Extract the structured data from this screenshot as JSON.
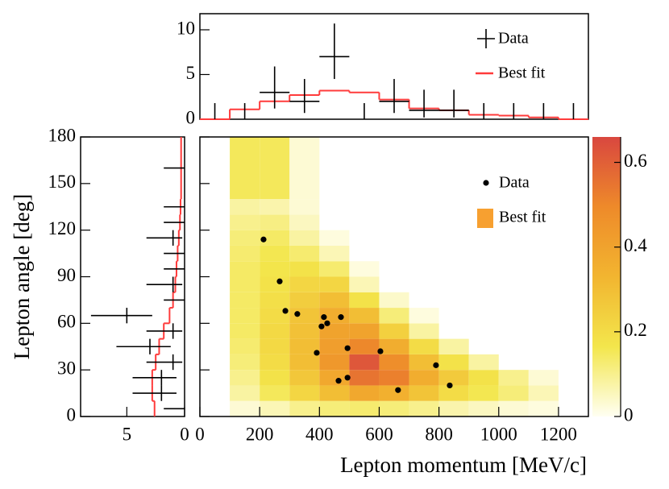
{
  "chart_data": [
    {
      "type": "histogram",
      "orientation": "vertical",
      "bins": [
        0,
        100,
        200,
        300,
        400,
        500,
        600,
        700,
        800,
        900,
        1000,
        1100,
        1200,
        1300
      ],
      "xlim": [
        0,
        1300
      ],
      "ylim": [
        0,
        11.8
      ],
      "yticks": [
        0,
        5,
        10
      ],
      "series": [
        {
          "name": "Data",
          "color": "#000000",
          "values": [
            0,
            0,
            3,
            2,
            7,
            0,
            2,
            1,
            1,
            0,
            0,
            0,
            0
          ],
          "lower": [
            0,
            0,
            1.2,
            0.7,
            4.5,
            0,
            0.7,
            0.2,
            0.2,
            0,
            0,
            0,
            0
          ],
          "upper": [
            1.8,
            1.8,
            5.9,
            4.5,
            10.7,
            1.8,
            4.5,
            3.3,
            3.3,
            1.8,
            1.8,
            1.8,
            1.8
          ]
        },
        {
          "name": "Best fit",
          "color": "#ff3b3b",
          "values": [
            0,
            1.1,
            2.0,
            2.7,
            3.2,
            3.0,
            2.2,
            1.2,
            1.0,
            0.5,
            0.4,
            0.2,
            0
          ]
        }
      ]
    },
    {
      "type": "histogram",
      "orientation": "horizontal",
      "bins": [
        0,
        10,
        20,
        30,
        40,
        50,
        60,
        70,
        80,
        90,
        100,
        110,
        120,
        130,
        140,
        180
      ],
      "xlim": [
        9,
        0
      ],
      "xticks": [
        5,
        0
      ],
      "ylim": [
        0,
        180
      ],
      "yticks": [
        0,
        30,
        60,
        90,
        120,
        150,
        180
      ],
      "y_label": "Lepton angle [deg]",
      "series": [
        {
          "name": "Data",
          "color": "#000000",
          "values": [
            0,
            2,
            2,
            1,
            3,
            1,
            5,
            0,
            1,
            0,
            0,
            1,
            0,
            0,
            0
          ],
          "lower": [
            0,
            0.7,
            0.7,
            0.2,
            1.2,
            0.2,
            2.8,
            0,
            0.2,
            0,
            0,
            0.2,
            0,
            0,
            0
          ],
          "upper": [
            1.8,
            4.5,
            4.5,
            3.3,
            5.9,
            3.3,
            8.1,
            1.8,
            3.3,
            1.8,
            1.8,
            3.3,
            1.8,
            1.8,
            1.8
          ]
        },
        {
          "name": "Best fit",
          "color": "#ff3b3b",
          "values": [
            2.6,
            2.8,
            2.8,
            2.5,
            2.2,
            1.8,
            1.3,
            1.0,
            0.8,
            0.7,
            0.6,
            0.5,
            0.4,
            0.35,
            0.3
          ]
        }
      ]
    },
    {
      "type": "heatmap",
      "xbins": [
        100,
        200,
        300,
        400,
        500,
        600,
        700,
        800,
        900,
        1000,
        1100,
        1200
      ],
      "ybins": [
        0,
        10,
        20,
        30,
        40,
        50,
        60,
        70,
        80,
        90,
        100,
        110,
        120,
        130,
        140,
        180
      ],
      "z": [
        [
          0.03,
          0.06,
          0.1,
          0.12,
          0.13,
          0.12,
          0.1,
          0.07,
          0.05,
          0.03,
          0.02
        ],
        [
          0.08,
          0.15,
          0.22,
          0.3,
          0.38,
          0.35,
          0.28,
          0.2,
          0.16,
          0.12,
          0.06
        ],
        [
          0.1,
          0.18,
          0.27,
          0.38,
          0.55,
          0.52,
          0.36,
          0.26,
          0.18,
          0.1,
          0.03
        ],
        [
          0.12,
          0.2,
          0.3,
          0.44,
          0.62,
          0.48,
          0.3,
          0.18,
          0.08,
          null,
          null
        ],
        [
          0.13,
          0.21,
          0.3,
          0.42,
          0.5,
          0.36,
          0.2,
          0.08,
          null,
          null,
          null
        ],
        [
          0.14,
          0.21,
          0.29,
          0.4,
          0.4,
          0.24,
          0.08,
          null,
          null,
          null,
          null
        ],
        [
          0.14,
          0.2,
          0.28,
          0.36,
          0.3,
          0.12,
          0.02,
          null,
          null,
          null,
          null
        ],
        [
          0.14,
          0.19,
          0.25,
          0.3,
          0.18,
          0.04,
          null,
          null,
          null,
          null,
          null
        ],
        [
          0.14,
          0.18,
          0.22,
          0.22,
          0.06,
          null,
          null,
          null,
          null,
          null,
          null
        ],
        [
          0.14,
          0.17,
          0.18,
          0.13,
          0.02,
          null,
          null,
          null,
          null,
          null,
          null
        ],
        [
          0.13,
          0.16,
          0.13,
          0.06,
          null,
          null,
          null,
          null,
          null,
          null,
          null
        ],
        [
          0.12,
          0.14,
          0.08,
          0.02,
          null,
          null,
          null,
          null,
          null,
          null,
          null
        ],
        [
          0.1,
          0.11,
          0.05,
          null,
          null,
          null,
          null,
          null,
          null,
          null,
          null
        ],
        [
          0.08,
          0.07,
          0.03,
          null,
          null,
          null,
          null,
          null,
          null,
          null,
          null
        ],
        [
          0.15,
          0.15,
          0.03,
          null,
          null,
          null,
          null,
          null,
          null,
          null,
          null
        ]
      ],
      "colormap": [
        "#fffff2",
        "#f3e64c",
        "#f2b530",
        "#ee8a2a",
        "#d9473f"
      ],
      "zlim": [
        0,
        0.66
      ],
      "zticks": [
        0,
        0.2,
        0.4,
        0.6
      ],
      "xlim": [
        0,
        1300
      ],
      "xticks": [
        0,
        200,
        400,
        600,
        800,
        1000,
        1200
      ],
      "ylim": [
        0,
        180
      ],
      "x_label": "Lepton momentum [MeV/c]",
      "fit_name": "Best fit",
      "fit_color": "#f7a030",
      "series": [
        {
          "name": "Data",
          "color": "#000000",
          "x": [
            213,
            267,
            286,
            326,
            407,
            415,
            426,
            472,
            391,
            494,
            604,
            464,
            494,
            663,
            790,
            836
          ],
          "y": [
            114,
            87,
            68,
            66,
            58,
            64,
            60,
            64,
            41,
            44,
            42,
            23,
            25,
            17,
            33,
            20
          ]
        }
      ]
    }
  ]
}
